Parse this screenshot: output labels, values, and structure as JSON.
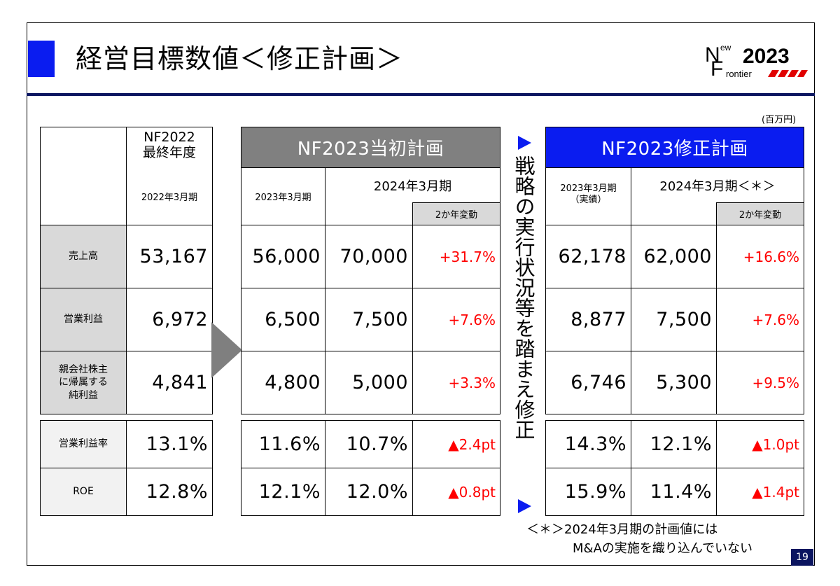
{
  "title": "経営目標数値＜修正計画＞",
  "logo": {
    "new_n": "N",
    "new_ew": "ew",
    "f": "F",
    "year": "2023",
    "rontier": "rontier"
  },
  "unit": "(百万円)",
  "left_table": {
    "header_top": "NF2022\n最終年度",
    "header_bottom": "2022年3月期",
    "rows": [
      {
        "label": "売上高",
        "value": "53,167"
      },
      {
        "label": "営業利益",
        "value": "6,972"
      },
      {
        "label": "親会社株主\nに帰属する\n純利益",
        "value": "4,841"
      }
    ],
    "ratio_rows": [
      {
        "label": "営業利益率",
        "value": "13.1%"
      },
      {
        "label": "ROE",
        "value": "12.8%"
      }
    ]
  },
  "initial_plan": {
    "band": "NF2023当初計画",
    "col1": "2023年3月期",
    "col2": "2024年3月期",
    "chg_header": "2か年変動",
    "rows": [
      {
        "a": "56,000",
        "b": "70,000",
        "c": "+31.7%"
      },
      {
        "a": "6,500",
        "b": "7,500",
        "c": "+7.6%"
      },
      {
        "a": "4,800",
        "b": "5,000",
        "c": "+3.3%"
      }
    ],
    "ratio_rows": [
      {
        "a": "11.6%",
        "b": "10.7%",
        "c": "▲2.4pt"
      },
      {
        "a": "12.1%",
        "b": "12.0%",
        "c": "▲0.8pt"
      }
    ]
  },
  "vertical_text": "戦略の実行状況等を踏まえ修正",
  "revised_plan": {
    "band": "NF2023修正計画",
    "col1": "2023年3月期\n（実績）",
    "col2": "2024年3月期＜＊＞",
    "chg_header": "2か年変動",
    "rows": [
      {
        "a": "62,178",
        "b": "62,000",
        "c": "+16.6%"
      },
      {
        "a": "8,877",
        "b": "7,500",
        "c": "+7.6%"
      },
      {
        "a": "6,746",
        "b": "5,300",
        "c": "+9.5%"
      }
    ],
    "ratio_rows": [
      {
        "a": "14.3%",
        "b": "12.1%",
        "c": "▲1.0pt"
      },
      {
        "a": "15.9%",
        "b": "11.4%",
        "c": "▲1.4pt"
      }
    ]
  },
  "note_line1": "＜＊＞2024年3月期の計画値には",
  "note_line2": "M&Aの実施を織り込んでいない",
  "page_number": "19",
  "colors": {
    "accent_blue": "#0a1cf0",
    "band_gray": "#808080",
    "label_gray": "#d9d9d9",
    "change_red": "#ff0000",
    "navy": "#0b1560"
  }
}
